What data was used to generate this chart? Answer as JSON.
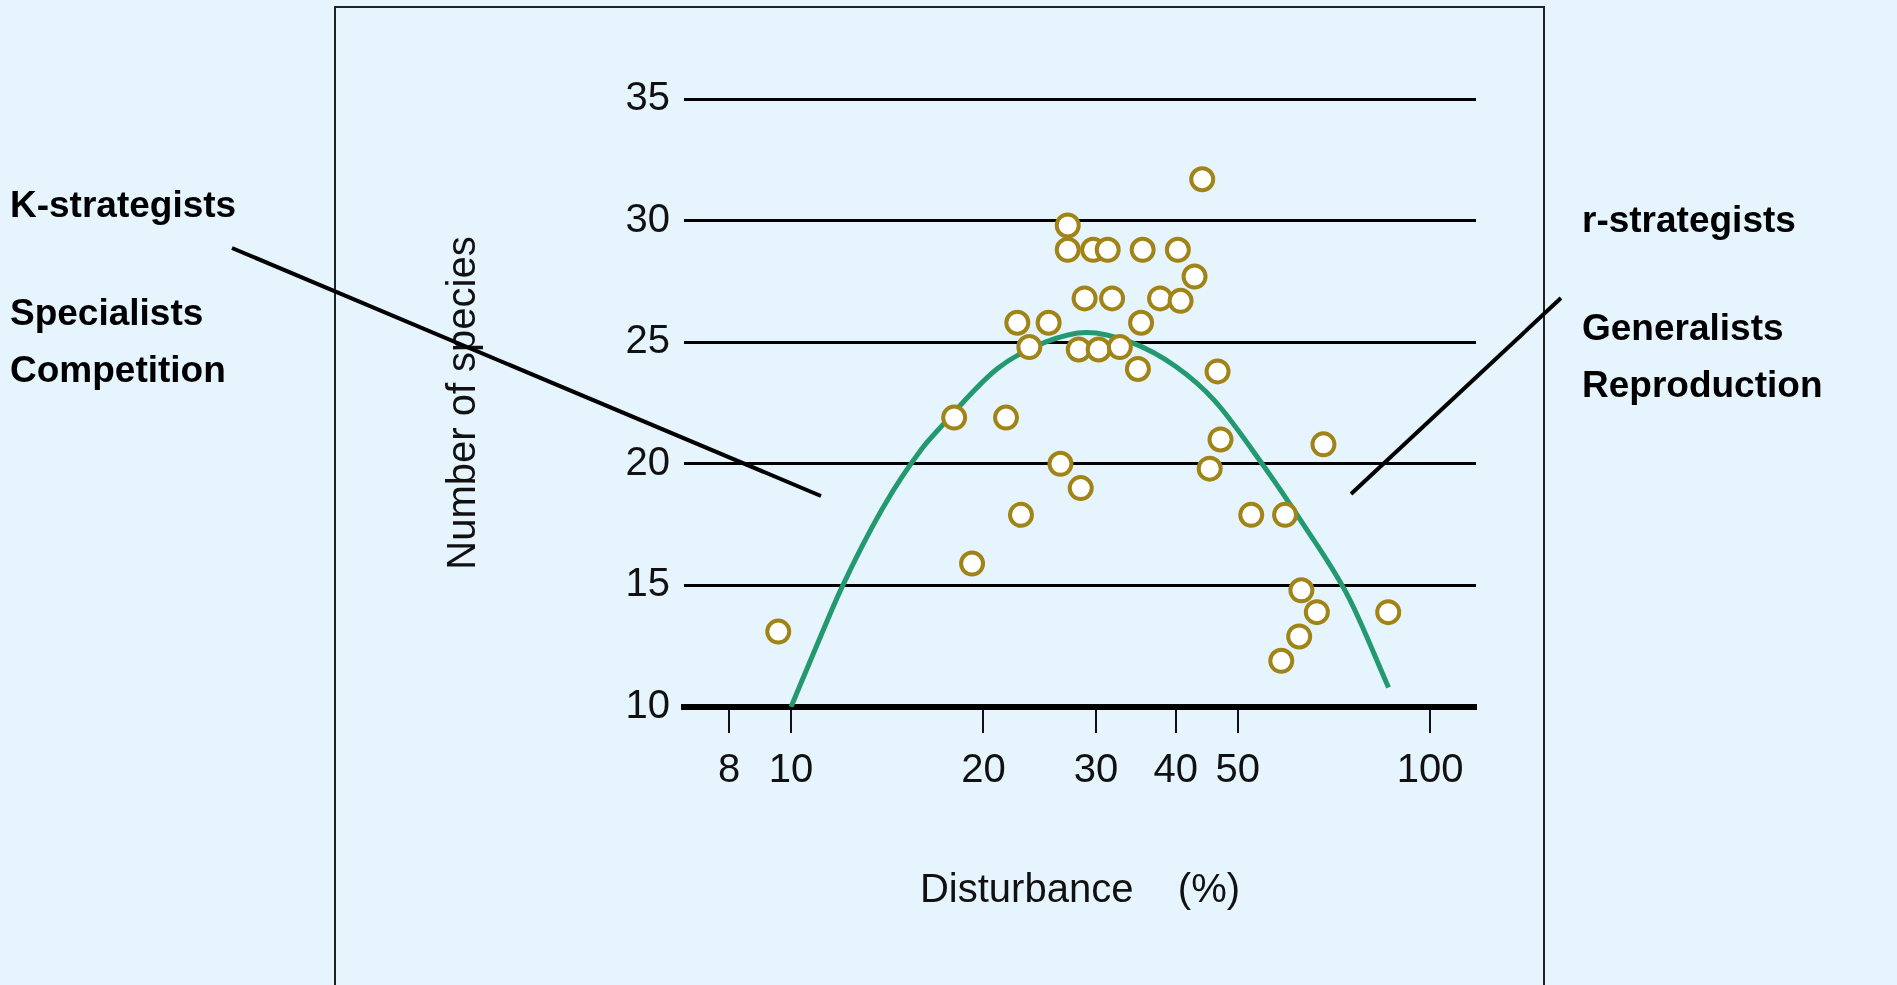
{
  "chart_data": {
    "type": "scatter",
    "xlabel": "Disturbance    (%)",
    "ylabel": "Number of species",
    "log": "x",
    "xlim": [
      6.8,
      118
    ],
    "xticks": [
      8,
      10,
      20,
      30,
      40,
      50,
      100
    ],
    "ylim": [
      10,
      35
    ],
    "yticks": [
      10,
      15,
      20,
      25,
      30,
      35
    ],
    "grid": "y",
    "legend": false,
    "marker": "circle",
    "annotations": [
      "K-strategists",
      "Specialists\nCompetition",
      "r-strategists",
      "Generalists\nReproduction"
    ],
    "series": [
      {
        "color": "#a08418",
        "x": [
          9.55,
          18.0,
          21.7,
          19.2,
          22.9,
          22.6,
          23.6,
          25.3,
          27.1,
          27.1,
          29.7,
          31.3,
          35.5,
          40.3,
          42.8,
          44.0,
          28.8,
          31.8,
          37.8,
          40.7,
          35.3,
          28.2,
          30.3,
          32.7,
          34.9,
          46.5,
          26.4,
          28.4,
          47.0,
          45.2,
          52.5,
          59.3,
          68.1,
          62.9,
          66.5,
          62.4,
          58.5,
          86.0
        ],
        "values": [
          13.1,
          21.9,
          21.9,
          15.9,
          17.9,
          25.8,
          24.8,
          25.8,
          29.8,
          28.8,
          28.8,
          28.8,
          28.8,
          28.8,
          27.7,
          31.7,
          26.8,
          26.8,
          26.8,
          26.7,
          25.8,
          24.7,
          24.7,
          24.8,
          23.9,
          23.8,
          20.0,
          19.0,
          21.0,
          19.8,
          17.9,
          17.9,
          20.8,
          14.8,
          13.9,
          12.9,
          11.9,
          13.9
        ]
      },
      {
        "type": "line",
        "color": "#22996e",
        "marker": "none",
        "x": [
          10,
          11,
          12,
          14,
          16,
          17,
          21,
          25,
          29,
          34,
          40,
          46,
          54.6,
          63,
          74.6,
          86.1
        ],
        "values": [
          10,
          12.6,
          14.9,
          18.3,
          20.6,
          21.4,
          23.9,
          25.0,
          25.4,
          25.0,
          24.0,
          22.6,
          20,
          17.6,
          14.5,
          10.8
        ]
      }
    ]
  }
}
